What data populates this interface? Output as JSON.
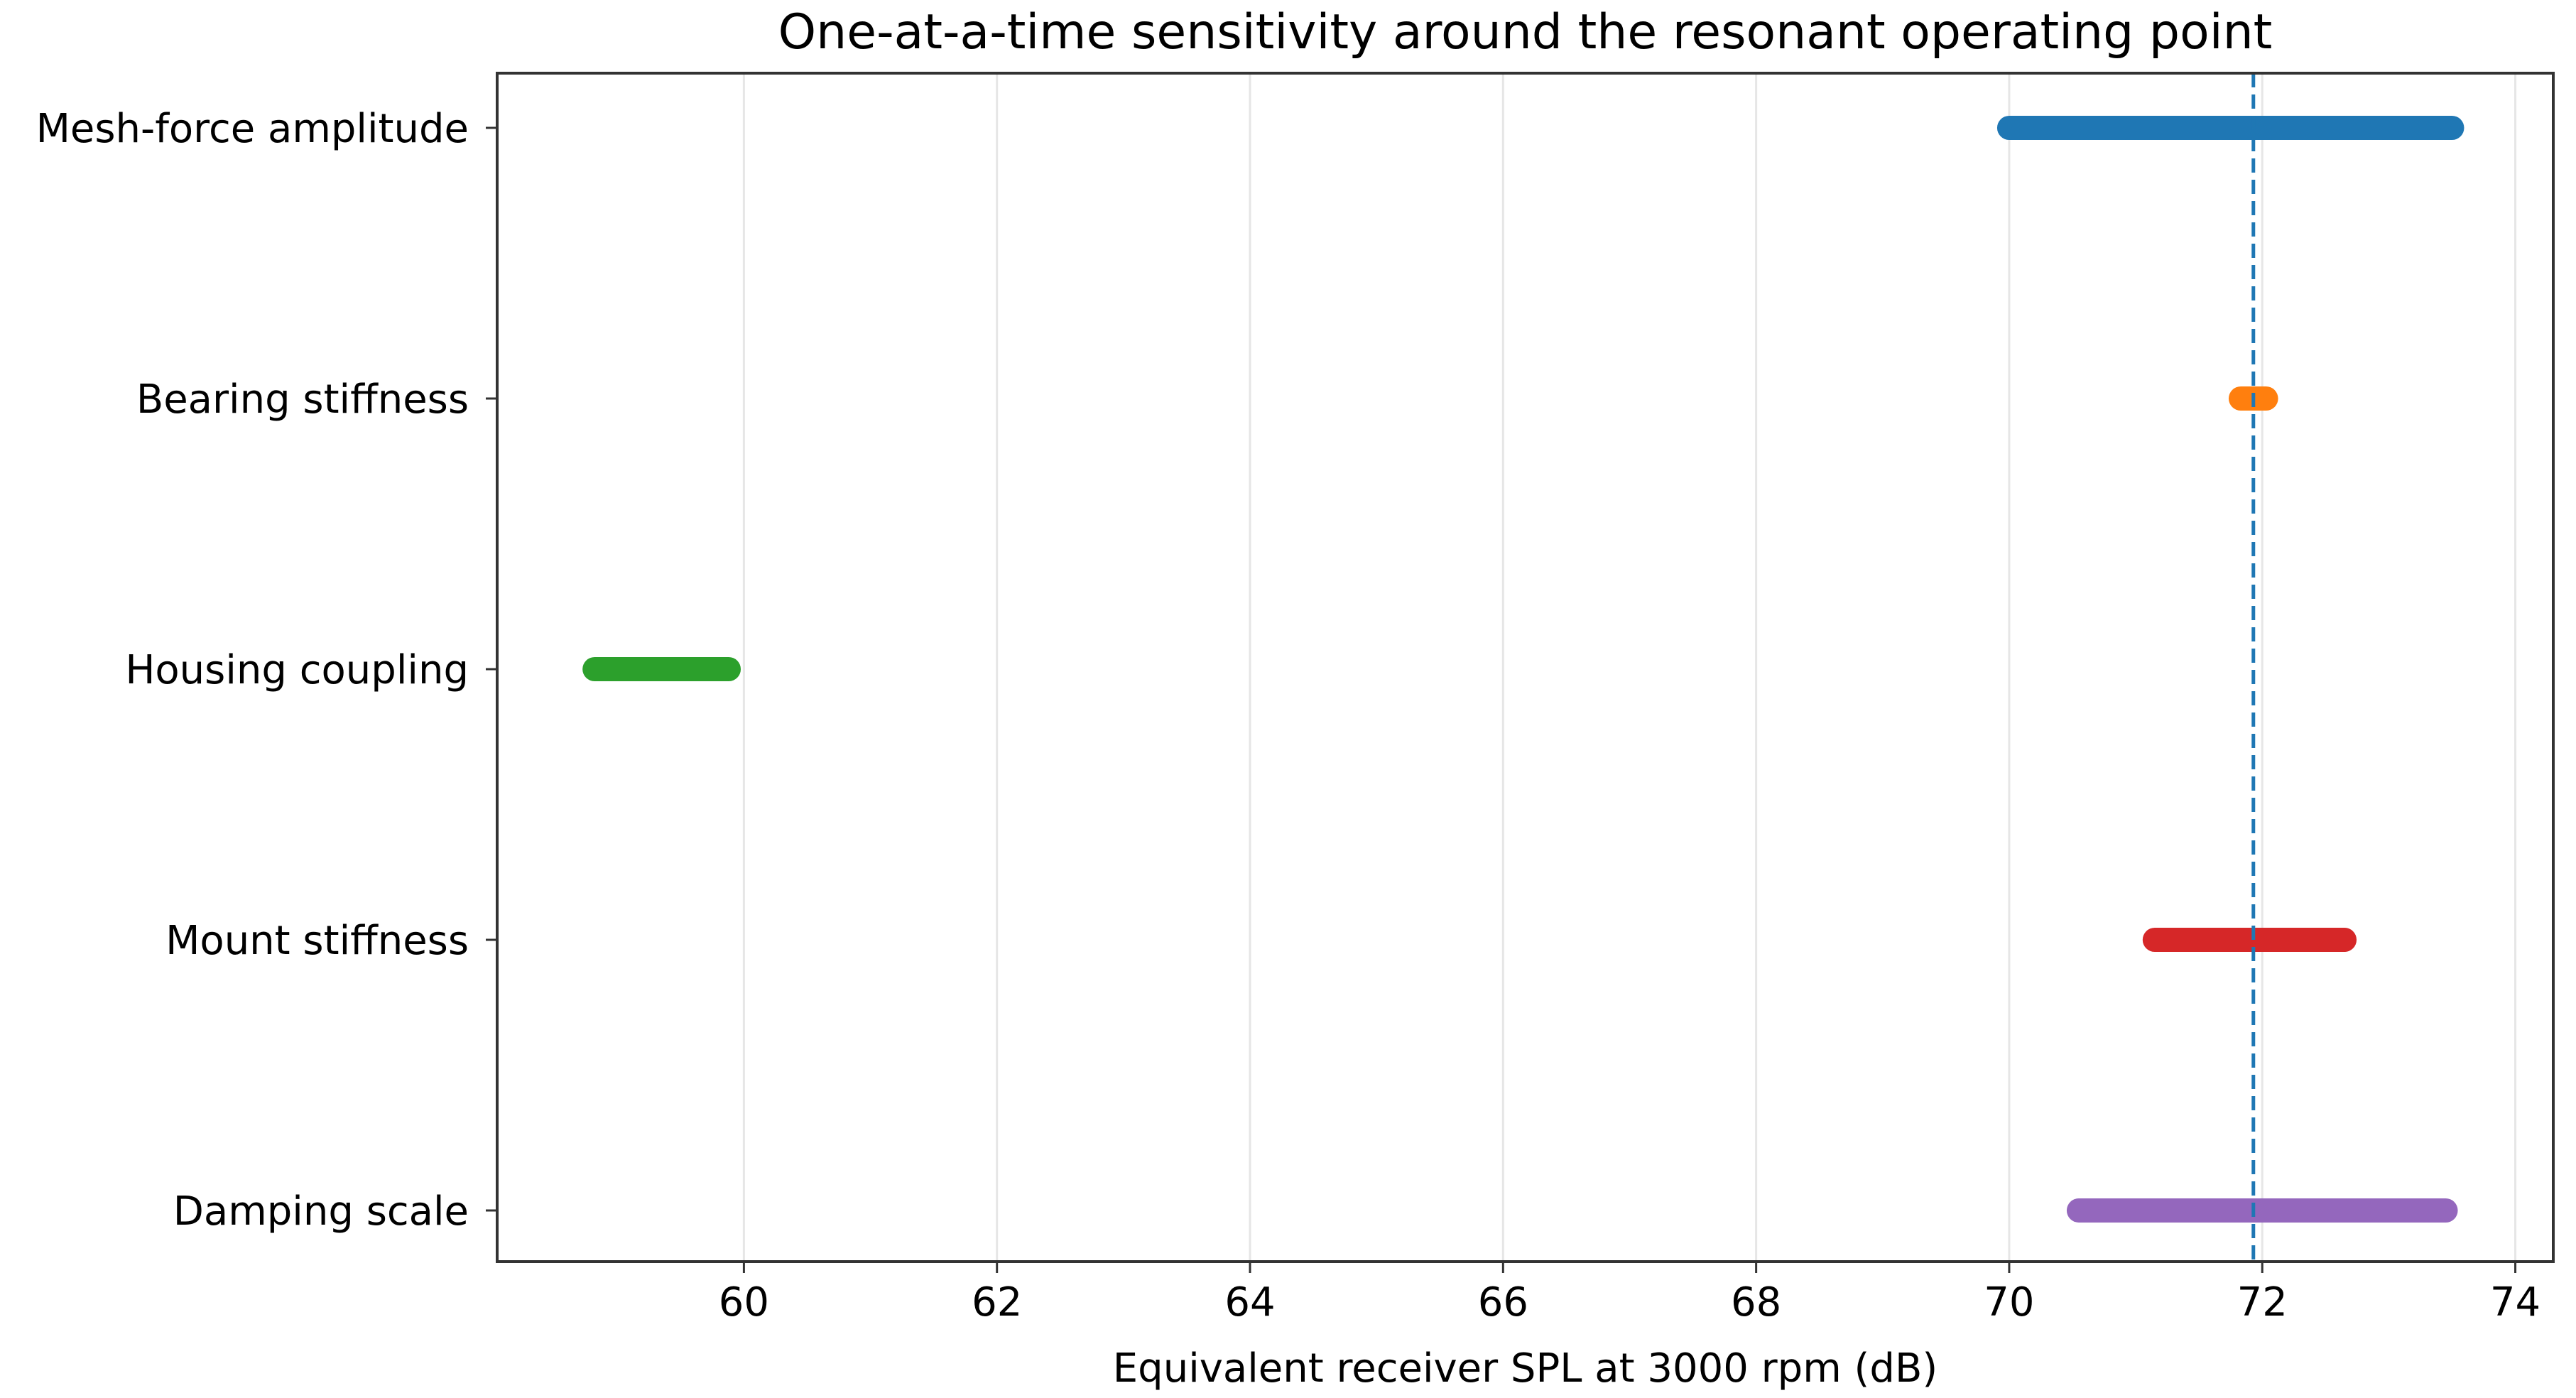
{
  "chart_data": {
    "type": "range",
    "title": "One-at-a-time sensitivity around the resonant operating point",
    "xlabel": "Equivalent receiver SPL at 3000 rpm (dB)",
    "ylabel": "",
    "xlim": [
      58.05,
      74.3
    ],
    "x_ticks": [
      60,
      62,
      64,
      66,
      68,
      70,
      72,
      74
    ],
    "x_tick_labels": [
      "60",
      "62",
      "64",
      "66",
      "68",
      "70",
      "72",
      "74"
    ],
    "grid": "vertical",
    "reference_line": {
      "x": 71.93,
      "style": "dashed",
      "color": "#1f77b4"
    },
    "categories": [
      "Mesh-force amplitude",
      "Bearing stiffness",
      "Housing coupling",
      "Mount stiffness",
      "Damping scale"
    ],
    "series": [
      {
        "category": "Mesh-force amplitude",
        "low": 70.0,
        "high": 73.5,
        "color": "#1f77b4"
      },
      {
        "category": "Bearing stiffness",
        "low": 71.83,
        "high": 72.03,
        "color": "#ff7f0e"
      },
      {
        "category": "Housing coupling",
        "low": 58.82,
        "high": 59.88,
        "color": "#2ca02c"
      },
      {
        "category": "Mount stiffness",
        "low": 71.15,
        "high": 72.65,
        "color": "#d62728"
      },
      {
        "category": "Damping scale",
        "low": 70.55,
        "high": 73.45,
        "color": "#9467bd"
      }
    ]
  }
}
